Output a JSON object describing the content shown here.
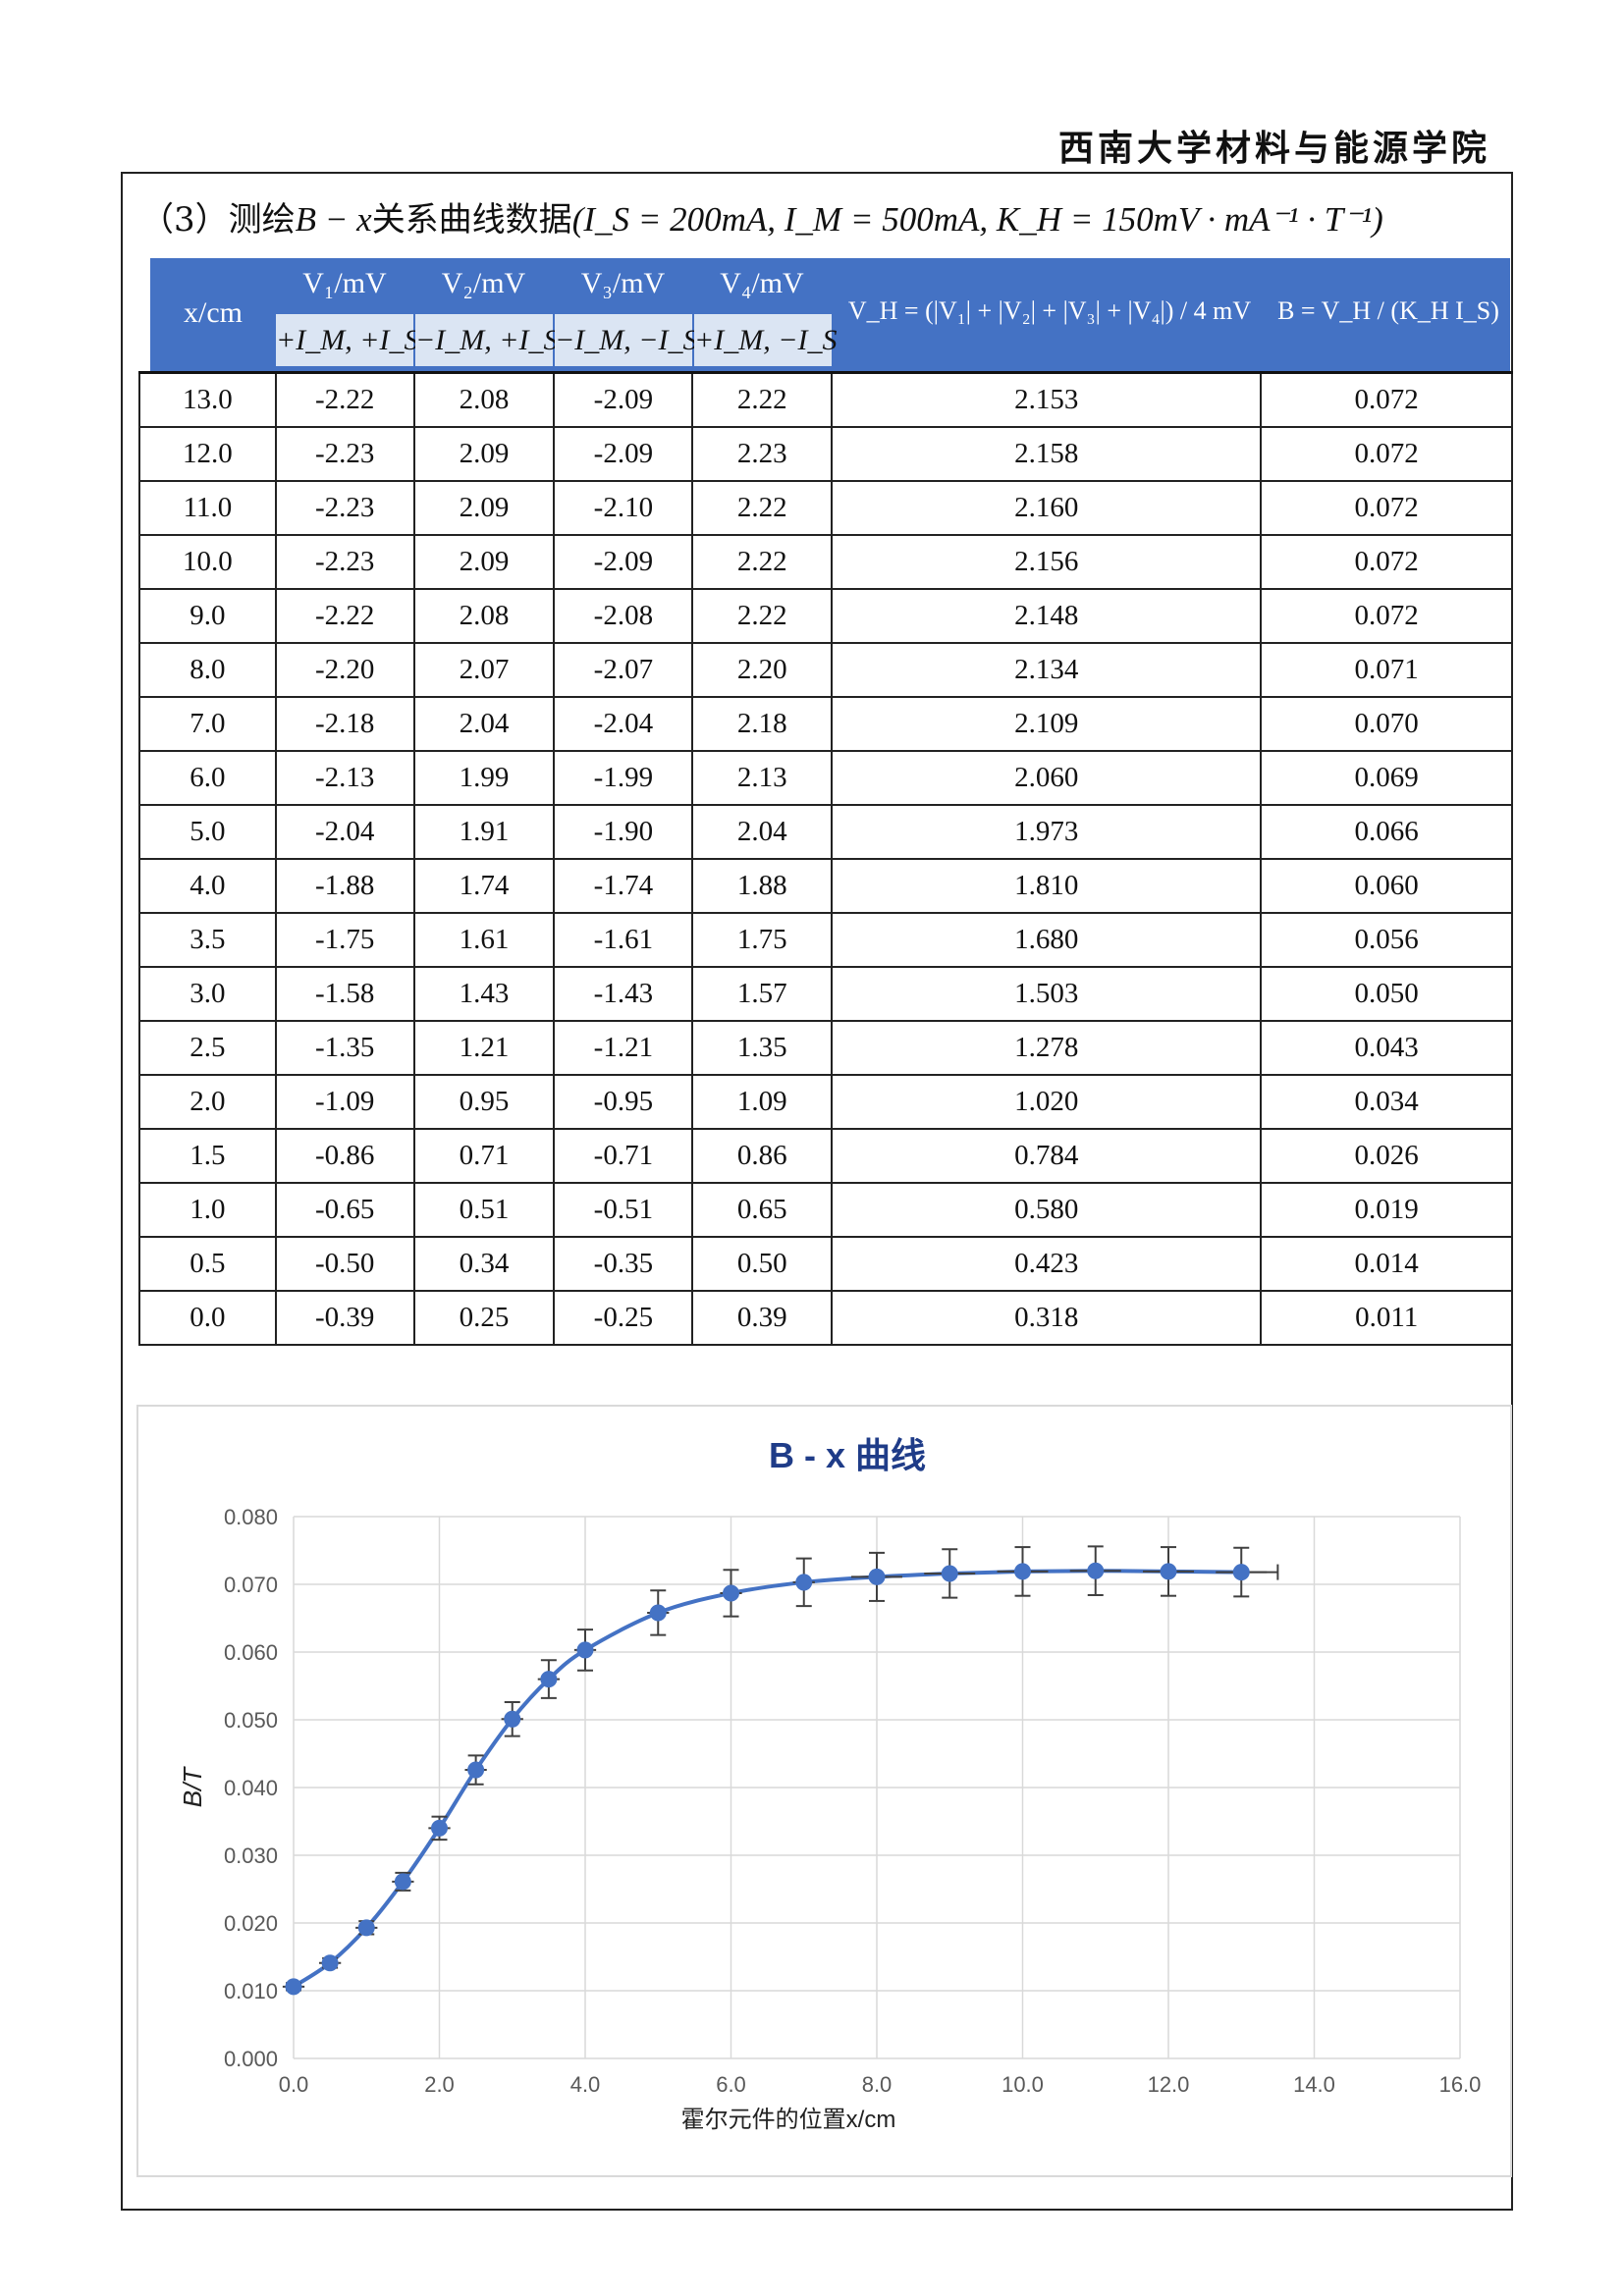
{
  "header": "西南大学材料与能源学院",
  "section_title_prefix": "（3）测绘",
  "section_title_math": "B − x",
  "section_title_mid": "关系曲线数据",
  "section_title_params": "(I_S = 200mA, I_M = 500mA, K_H = 150mV · mA⁻¹ · T⁻¹)",
  "table": {
    "headers": {
      "x": "x/cm",
      "v1": "V₁/mV",
      "v2": "V₂/mV",
      "v3": "V₃/mV",
      "v4": "V₄/mV",
      "v1_sub": "+I_M, +I_S",
      "v2_sub": "−I_M, +I_S",
      "v3_sub": "−I_M, −I_S",
      "v4_sub": "+I_M, −I_S",
      "vh": "V_H = (|V₁| + |V₂| + |V₃| + |V₄|) / 4 mV",
      "b": "B = V_H / (K_H I_S)"
    },
    "rows": [
      [
        "13.0",
        "-2.22",
        "2.08",
        "-2.09",
        "2.22",
        "2.153",
        "0.072"
      ],
      [
        "12.0",
        "-2.23",
        "2.09",
        "-2.09",
        "2.23",
        "2.158",
        "0.072"
      ],
      [
        "11.0",
        "-2.23",
        "2.09",
        "-2.10",
        "2.22",
        "2.160",
        "0.072"
      ],
      [
        "10.0",
        "-2.23",
        "2.09",
        "-2.09",
        "2.22",
        "2.156",
        "0.072"
      ],
      [
        "9.0",
        "-2.22",
        "2.08",
        "-2.08",
        "2.22",
        "2.148",
        "0.072"
      ],
      [
        "8.0",
        "-2.20",
        "2.07",
        "-2.07",
        "2.20",
        "2.134",
        "0.071"
      ],
      [
        "7.0",
        "-2.18",
        "2.04",
        "-2.04",
        "2.18",
        "2.109",
        "0.070"
      ],
      [
        "6.0",
        "-2.13",
        "1.99",
        "-1.99",
        "2.13",
        "2.060",
        "0.069"
      ],
      [
        "5.0",
        "-2.04",
        "1.91",
        "-1.90",
        "2.04",
        "1.973",
        "0.066"
      ],
      [
        "4.0",
        "-1.88",
        "1.74",
        "-1.74",
        "1.88",
        "1.810",
        "0.060"
      ],
      [
        "3.5",
        "-1.75",
        "1.61",
        "-1.61",
        "1.75",
        "1.680",
        "0.056"
      ],
      [
        "3.0",
        "-1.58",
        "1.43",
        "-1.43",
        "1.57",
        "1.503",
        "0.050"
      ],
      [
        "2.5",
        "-1.35",
        "1.21",
        "-1.21",
        "1.35",
        "1.278",
        "0.043"
      ],
      [
        "2.0",
        "-1.09",
        "0.95",
        "-0.95",
        "1.09",
        "1.020",
        "0.034"
      ],
      [
        "1.5",
        "-0.86",
        "0.71",
        "-0.71",
        "0.86",
        "0.784",
        "0.026"
      ],
      [
        "1.0",
        "-0.65",
        "0.51",
        "-0.51",
        "0.65",
        "0.580",
        "0.019"
      ],
      [
        "0.5",
        "-0.50",
        "0.34",
        "-0.35",
        "0.50",
        "0.423",
        "0.014"
      ],
      [
        "0.0",
        "-0.39",
        "0.25",
        "-0.25",
        "0.39",
        "0.318",
        "0.011"
      ]
    ]
  },
  "chart_data": {
    "type": "scatter",
    "title": "B - x 曲线",
    "xlabel": "霍尔元件的位置x/cm",
    "ylabel": "B/T",
    "xlim": [
      0,
      16
    ],
    "ylim": [
      0,
      0.08
    ],
    "xticks": [
      "0.0",
      "2.0",
      "4.0",
      "6.0",
      "8.0",
      "10.0",
      "12.0",
      "14.0",
      "16.0"
    ],
    "yticks": [
      "0.000",
      "0.010",
      "0.020",
      "0.030",
      "0.040",
      "0.050",
      "0.060",
      "0.070",
      "0.080"
    ],
    "grid": true,
    "line_color": "#4472C4",
    "errorbar_color": "#404040",
    "series": [
      {
        "x": [
          0.0,
          0.5,
          1.0,
          1.5,
          2.0,
          2.5,
          3.0,
          3.5,
          4.0,
          5.0,
          6.0,
          7.0,
          8.0,
          9.0,
          10.0,
          11.0,
          12.0,
          13.0
        ],
        "y": [
          0.0106,
          0.0141,
          0.0193,
          0.0261,
          0.034,
          0.0426,
          0.0501,
          0.056,
          0.0603,
          0.0658,
          0.0687,
          0.0703,
          0.0711,
          0.0716,
          0.0719,
          0.072,
          0.0719,
          0.0718
        ]
      }
    ]
  }
}
